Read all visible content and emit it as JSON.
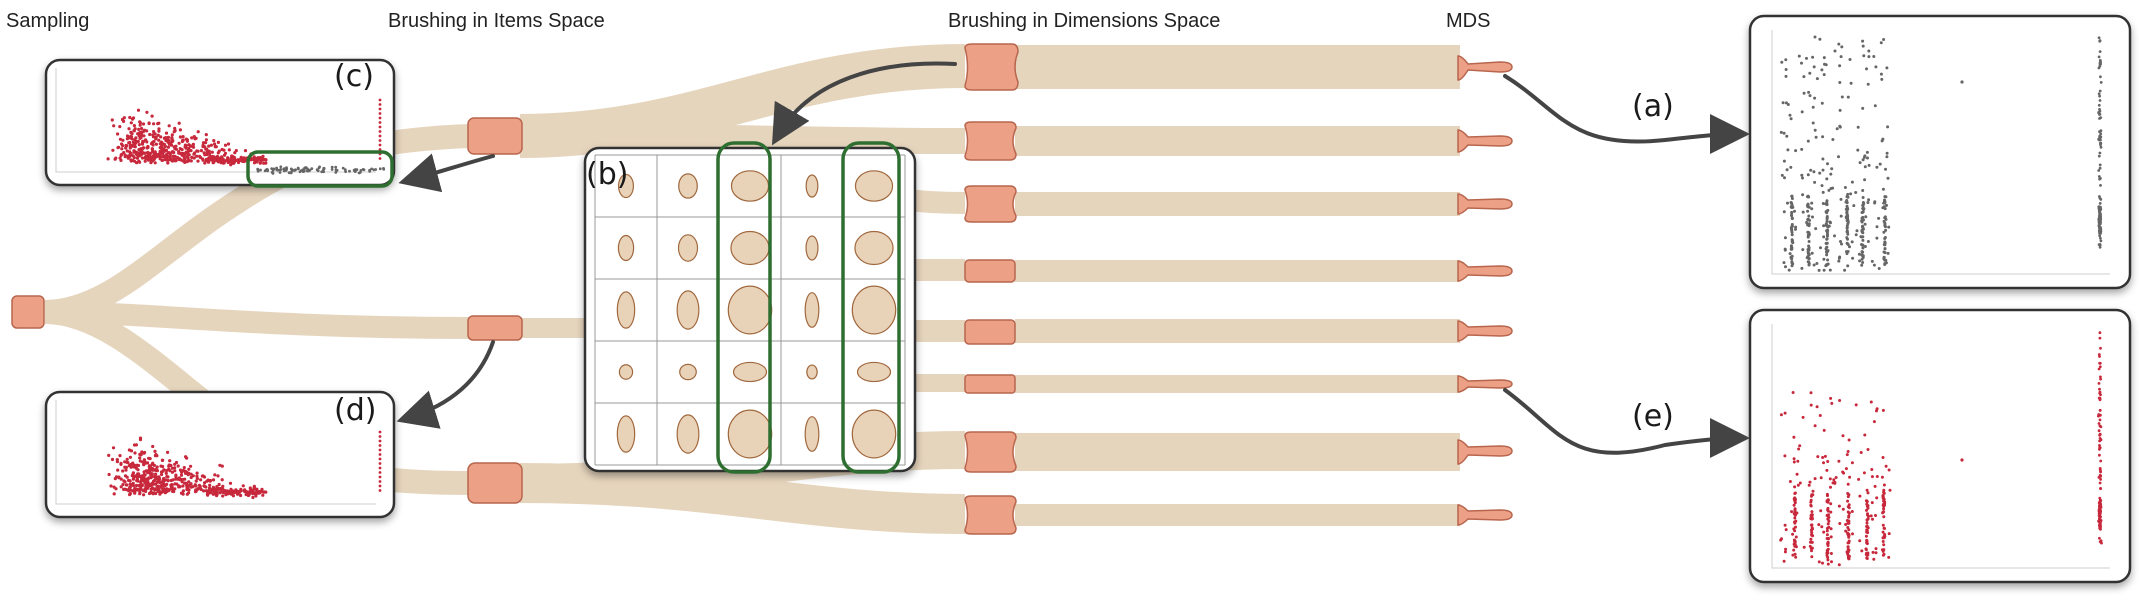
{
  "stages": {
    "sampling": "Sampling",
    "items": "Brushing in Items Space",
    "dims": "Brushing in Dimensions Space",
    "mds": "MDS"
  },
  "panels": {
    "a": "(a)",
    "b": "(b)",
    "c": "(c)",
    "d": "(d)",
    "e": "(e)"
  },
  "colors": {
    "flow": "#e6d5bd",
    "node": "#eca086",
    "node_stroke": "#b8664e",
    "highlight": "#2e6e30",
    "arrow": "#444444",
    "point_red": "#c8283c",
    "point_gray": "#666666",
    "ellipse_fill": "#e8d3b8",
    "ellipse_stroke": "#a0683e"
  }
}
